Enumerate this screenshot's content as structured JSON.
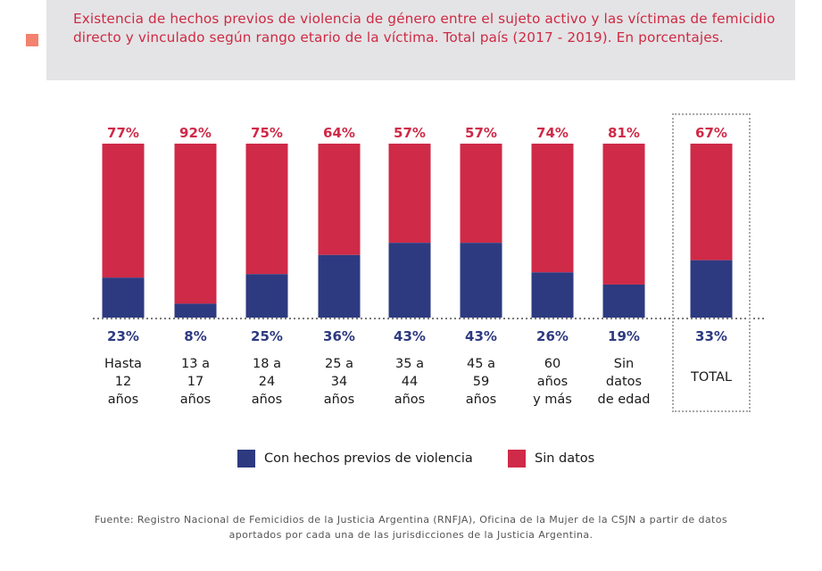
{
  "title": "Existencia de hechos previos de violencia de género entre el sujeto activo y las víctimas de femicidio directo y vinculado según rango etario de la víctima. Total país (2017 - 2019). En porcentajes.",
  "colors": {
    "con_hechos": "#2e3a80",
    "sin_datos": "#cf2a47",
    "title_marker": "#f3826f",
    "title_bg": "#e4e4e6"
  },
  "chart_data": {
    "type": "bar",
    "stacked": true,
    "unit": "%",
    "categories": [
      "Hasta\n12\naños",
      "13 a\n17\naños",
      "18 a\n24\naños",
      "25 a\n34\naños",
      "35 a\n44\naños",
      "45 a\n59\naños",
      "60\naños\ny más",
      "Sin\ndatos\nde edad",
      "TOTAL"
    ],
    "series": [
      {
        "name": "Con hechos previos de violencia",
        "values": [
          23,
          8,
          25,
          36,
          43,
          43,
          26,
          19,
          33
        ],
        "labels": [
          "23%",
          "8%",
          "25%",
          "36%",
          "43%",
          "43%",
          "26%",
          "19%",
          "33%"
        ]
      },
      {
        "name": "Sin datos",
        "values": [
          77,
          92,
          75,
          64,
          57,
          57,
          74,
          81,
          67
        ],
        "labels": [
          "77%",
          "92%",
          "75%",
          "64%",
          "57%",
          "57%",
          "74%",
          "81%",
          "67%"
        ]
      }
    ],
    "ylim": [
      0,
      100
    ],
    "legend": "bottom"
  },
  "legend": [
    {
      "label": "Con hechos previos de violencia"
    },
    {
      "label": "Sin datos"
    }
  ],
  "source": "Fuente: Registro Nacional de Femicidios de la Justicia Argentina (RNFJA), Oficina de la Mujer de la CSJN a partir de datos aportados por cada una de las jurisdicciones de la Justicia Argentina."
}
